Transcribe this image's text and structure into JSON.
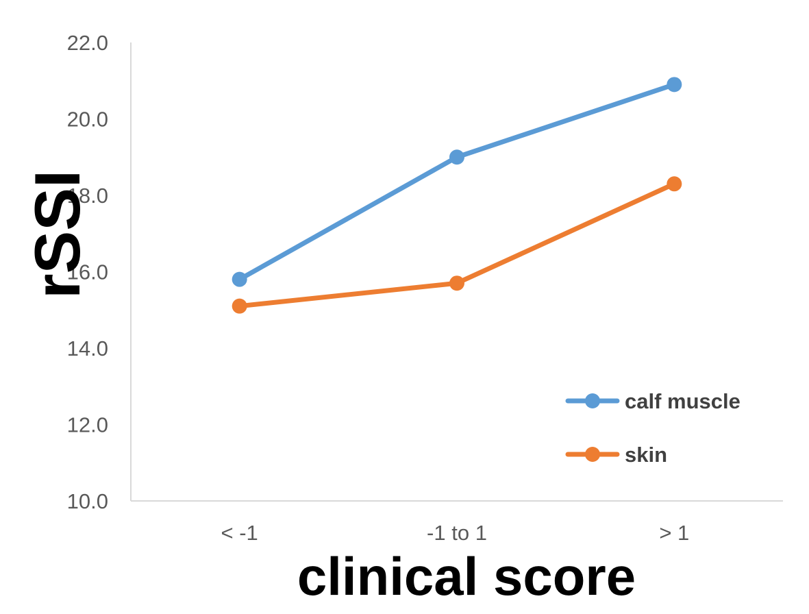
{
  "chart_data": {
    "type": "line",
    "title": "",
    "xlabel": "clinical score",
    "ylabel": "rSSI",
    "categories": [
      "< -1",
      "-1 to 1",
      "> 1"
    ],
    "ylim": [
      10.0,
      22.0
    ],
    "yticks": [
      "10.0",
      "12.0",
      "14.0",
      "16.0",
      "18.0",
      "20.0",
      "22.0"
    ],
    "grid": false,
    "legend_position": "bottom-right",
    "series": [
      {
        "name": "calf muscle",
        "values": [
          15.8,
          19.0,
          20.9
        ],
        "color": "#5B9BD5"
      },
      {
        "name": "skin",
        "values": [
          15.1,
          15.7,
          18.3
        ],
        "color": "#ED7D31"
      }
    ]
  }
}
